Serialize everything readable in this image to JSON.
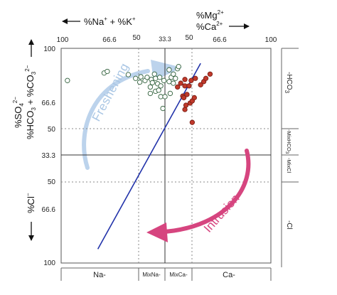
{
  "chart_data": {
    "type": "scatter",
    "top_axis": {
      "left_label": "%Na",
      "left_label_sup1": "+",
      "left_label_mid": " + %K",
      "left_label_sup2": "+",
      "right_label_line1": "%Mg",
      "right_label_line1_sup": "2+",
      "right_label_line2": "%Ca",
      "right_label_line2_sup": "2+",
      "ticks": [
        "100",
        "66.6",
        "50",
        "33.3",
        "50",
        "66.6",
        "100"
      ]
    },
    "left_axis": {
      "upper_label_line1": "%SO",
      "upper_label_line1_sub": "4",
      "upper_label_line1_sup": "2−",
      "upper_label_line2": "%HCO",
      "upper_label_line2_sub": "3",
      "upper_label_line2_mid": " + %CO",
      "upper_label_line2_sub2": "3",
      "upper_label_line2_sup": "2−",
      "lower_label": "%Cl",
      "lower_label_sup": "−",
      "ticks": [
        "100",
        "66.6",
        "50",
        "33.3",
        "50",
        "66.6",
        "100"
      ]
    },
    "right_strip": {
      "hco3_label": "-HCO",
      "hco3_sub": "3",
      "mixhco3_label": "-MixHCO",
      "mixhco3_sub": "3",
      "mixcl_label": "-MixCl",
      "cl_label": "-Cl"
    },
    "bottom_strip": {
      "labels": [
        "Na-",
        "MixNa-",
        "MixCa-",
        "Ca-"
      ]
    },
    "annotations": {
      "freshening": "Freshening",
      "intrusion": "Intrusion"
    },
    "colors": {
      "fresh_series": "#ffffff",
      "intrusion_series": "#c0392b",
      "mixing_line": "#2233aa",
      "freshening_arrow": "#b8d0ea",
      "intrusion_arrow": "#d6457f"
    },
    "series": [
      {
        "marker": "open",
        "points": [
          [
            -94,
            70
          ],
          [
            -59,
            77
          ],
          [
            -56,
            78.5
          ],
          [
            -36,
            75.5
          ],
          [
            -29,
            72
          ],
          [
            -25,
            68.5
          ],
          [
            -24,
            73.5
          ],
          [
            -20,
            70
          ],
          [
            -18,
            73
          ],
          [
            -15,
            64
          ],
          [
            -15,
            58
          ],
          [
            -14,
            71
          ],
          [
            -13,
            68
          ],
          [
            -11,
            76
          ],
          [
            -10,
            72
          ],
          [
            -10,
            60
          ],
          [
            -8,
            67
          ],
          [
            -7,
            61
          ],
          [
            -6,
            73
          ],
          [
            -5,
            55
          ],
          [
            -5,
            65
          ],
          [
            -3,
            44
          ],
          [
            -2,
            70
          ],
          [
            -1,
            55
          ],
          [
            3,
            69
          ],
          [
            3,
            80
          ],
          [
            4,
            58
          ],
          [
            5,
            73
          ],
          [
            7,
            67.5
          ],
          [
            7,
            76
          ],
          [
            9,
            72
          ],
          [
            11,
            81
          ],
          [
            12,
            83
          ]
        ]
      },
      {
        "marker": "filled",
        "points": [
          [
            11,
            64
          ],
          [
            14,
            67.5
          ],
          [
            16,
            55.5
          ],
          [
            17,
            54
          ],
          [
            18,
            65
          ],
          [
            18,
            71
          ],
          [
            18,
            43
          ],
          [
            19,
            47
          ],
          [
            20,
            57
          ],
          [
            22,
            65
          ],
          [
            23,
            49
          ],
          [
            24,
            70
          ],
          [
            25,
            51
          ],
          [
            25,
            31
          ],
          [
            27,
            54
          ],
          [
            28,
            72
          ],
          [
            33,
            66
          ],
          [
            36,
            69
          ],
          [
            38,
            72
          ],
          [
            42,
            76
          ]
        ]
      }
    ],
    "mixing_line": [
      [
        -65,
        -87
      ],
      [
        33,
        86
      ]
    ]
  }
}
